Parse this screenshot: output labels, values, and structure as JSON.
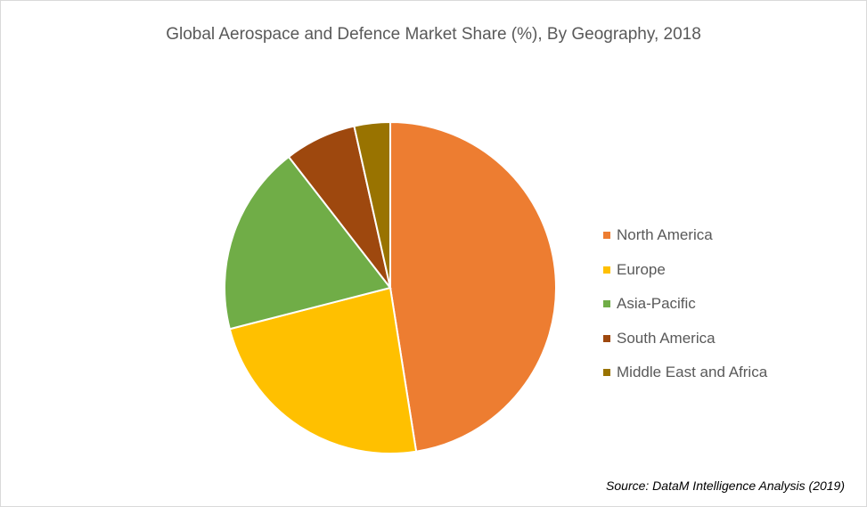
{
  "chart_data": {
    "type": "pie",
    "title": "Global Aerospace and Defence Market Share (%), By Geography, 2018",
    "categories": [
      "North America",
      "Europe",
      "Asia-Pacific",
      "South America",
      "Middle East and Africa"
    ],
    "values": [
      47.5,
      23.5,
      18.5,
      7.0,
      3.5
    ],
    "colors": [
      "#ED7D31",
      "#FFC000",
      "#70AD47",
      "#9E480E",
      "#997300"
    ],
    "legend_position": "right",
    "start_angle": "top, clockwise"
  },
  "source": "Source: DataM Intelligence Analysis (2019)"
}
